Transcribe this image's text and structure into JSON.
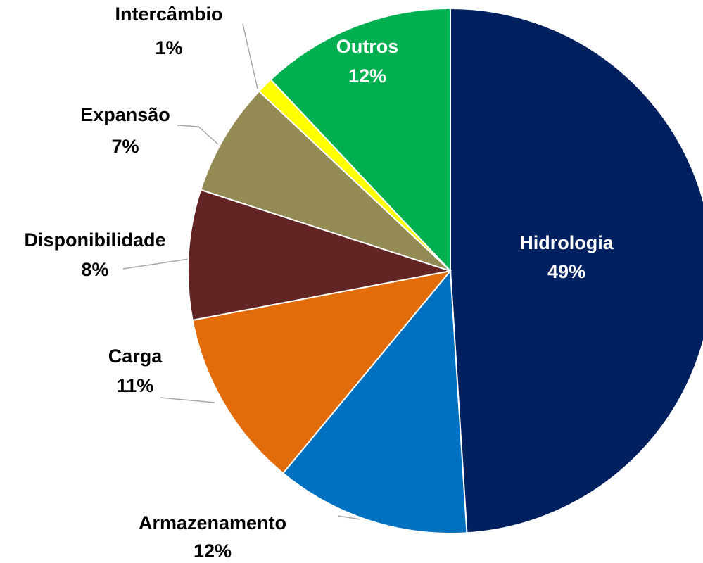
{
  "chart_data": {
    "type": "pie",
    "categories": [
      "Hidrologia",
      "Armazenamento",
      "Carga",
      "Disponibilidade",
      "Expansão",
      "Intercâmbio",
      "Outros"
    ],
    "values": [
      49,
      12,
      11,
      8,
      7,
      1,
      12
    ],
    "value_labels": [
      "49%",
      "12%",
      "11%",
      "8%",
      "7%",
      "1%",
      "12%"
    ],
    "colors": [
      "#002060",
      "#0070c0",
      "#e36c0a",
      "#632523",
      "#948a54",
      "#ffff00",
      "#00b050"
    ]
  }
}
